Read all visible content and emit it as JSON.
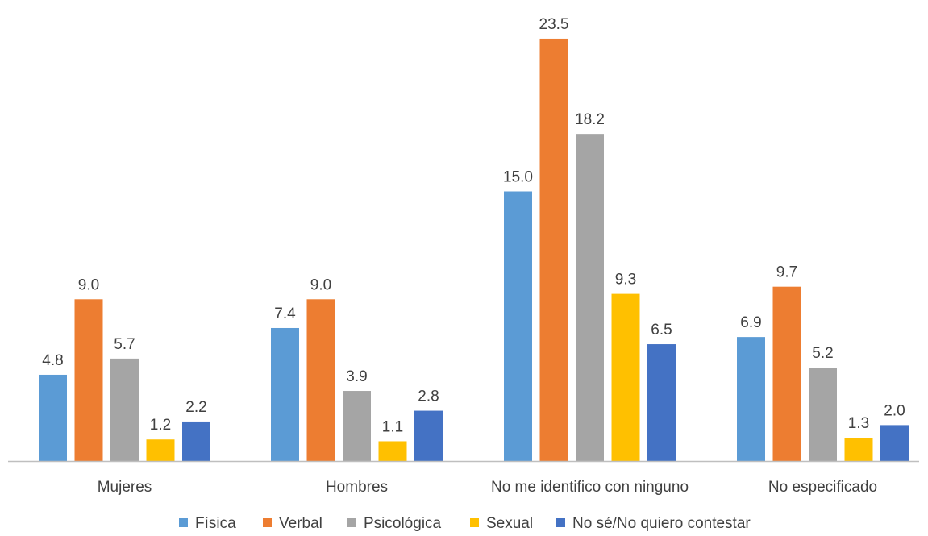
{
  "chart_data": {
    "type": "bar",
    "title": "",
    "xlabel": "",
    "ylabel": "",
    "ylim": [
      0,
      24
    ],
    "grid": false,
    "legend_position": "bottom",
    "categories": [
      "Mujeres",
      "Hombres",
      "No me identifico con ninguno",
      "No especificado"
    ],
    "series": [
      {
        "name": "Física",
        "color": "#5B9BD5",
        "values": [
          4.8,
          7.4,
          15.0,
          6.9
        ],
        "labels": [
          "4.8",
          "7.4",
          "15.0",
          "6.9"
        ]
      },
      {
        "name": "Verbal",
        "color": "#ED7D31",
        "values": [
          9.0,
          9.0,
          23.5,
          9.7
        ],
        "labels": [
          "9.0",
          "9.0",
          "23.5",
          "9.7"
        ]
      },
      {
        "name": "Psicológica",
        "color": "#A5A5A5",
        "values": [
          5.7,
          3.9,
          18.2,
          5.2
        ],
        "labels": [
          "5.7",
          "3.9",
          "18.2",
          "5.2"
        ]
      },
      {
        "name": "Sexual",
        "color": "#FFC000",
        "values": [
          1.2,
          1.1,
          9.3,
          1.3
        ],
        "labels": [
          "1.2",
          "1.1",
          "9.3",
          "1.3"
        ]
      },
      {
        "name": "No sé/No quiero contestar",
        "color": "#4472C4",
        "values": [
          2.2,
          2.8,
          6.5,
          2.0
        ],
        "labels": [
          "2.2",
          "2.8",
          "6.5",
          "2.0"
        ]
      }
    ]
  }
}
